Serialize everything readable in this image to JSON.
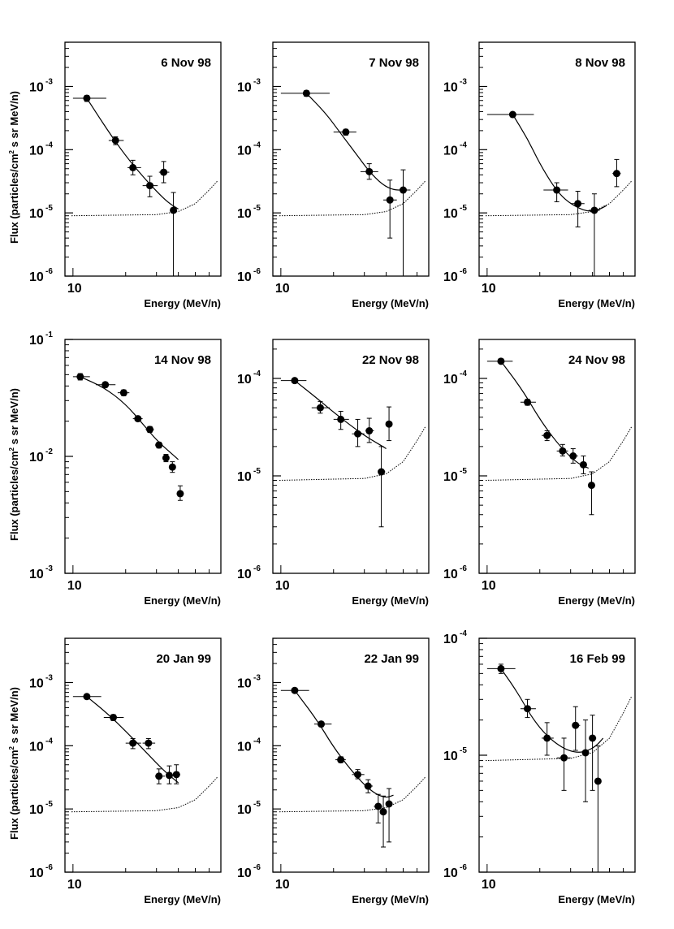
{
  "figure": {
    "ylabel_prefix": "Flux (particles/cm",
    "ylabel_sup": "2",
    "ylabel_suffix": " s sr MeV/n)",
    "xlabel": "Energy (MeV/n)",
    "x_tick_label": "10"
  },
  "chart_data": [
    {
      "type": "scatter",
      "title": "6 Nov 98",
      "xlabel": "Energy (MeV/n)",
      "ylabel": "Flux (particles/cm2 s sr MeV/n)",
      "xscale": "log",
      "yscale": "log",
      "xlim": [
        9,
        70
      ],
      "ylim_exp": [
        -6,
        -2.3
      ],
      "ytick_exps": [
        -6,
        -5,
        -4,
        -3
      ],
      "points": [
        {
          "x": 12,
          "y": 0.00065,
          "xlo": 10,
          "xhi": 15.5,
          "ylo": 0.00058,
          "yhi": 0.00072
        },
        {
          "x": 17.5,
          "y": 0.00014,
          "xlo": 16,
          "xhi": 19.5,
          "ylo": 0.00012,
          "yhi": 0.00016
        },
        {
          "x": 22,
          "y": 5.2e-05,
          "xlo": 20.5,
          "xhi": 24.5,
          "ylo": 4e-05,
          "yhi": 6.8e-05
        },
        {
          "x": 27.5,
          "y": 2.7e-05,
          "xlo": 25,
          "xhi": 30.5,
          "ylo": 1.8e-05,
          "yhi": 3.8e-05
        },
        {
          "x": 33,
          "y": 4.4e-05,
          "xlo": 31,
          "xhi": 35.5,
          "ylo": 3e-05,
          "yhi": 6.5e-05
        },
        {
          "x": 37.5,
          "y": 1.1e-05,
          "xlo": 36,
          "xhi": 39,
          "ylo": 1e-06,
          "yhi": 2.1e-05
        }
      ],
      "fit": [
        [
          12,
          0.00065
        ],
        [
          16,
          0.00019
        ],
        [
          20,
          8e-05
        ],
        [
          25,
          3.8e-05
        ],
        [
          30,
          2.2e-05
        ],
        [
          35,
          1.45e-05
        ],
        [
          40,
          1.15e-05
        ]
      ],
      "background": [
        [
          9.8,
          9e-06
        ],
        [
          30,
          9.4e-06
        ],
        [
          40,
          1.05e-05
        ],
        [
          50,
          1.4e-05
        ],
        [
          60,
          2.3e-05
        ],
        [
          67,
          3.2e-05
        ]
      ]
    },
    {
      "type": "scatter",
      "title": "7 Nov 98",
      "xlabel": "Energy (MeV/n)",
      "ylabel": "",
      "xscale": "log",
      "yscale": "log",
      "xlim": [
        9,
        70
      ],
      "ylim_exp": [
        -6,
        -2.3
      ],
      "ytick_exps": [
        -6,
        -5,
        -4,
        -3
      ],
      "points": [
        {
          "x": 14,
          "y": 0.00078,
          "xlo": 10,
          "xhi": 19,
          "ylo": 0.0007,
          "yhi": 0.00086
        },
        {
          "x": 23.5,
          "y": 0.00019,
          "xlo": 20,
          "xhi": 27,
          "ylo": 0.00017,
          "yhi": 0.00021
        },
        {
          "x": 32,
          "y": 4.5e-05,
          "xlo": 28.5,
          "xhi": 36,
          "ylo": 3.4e-05,
          "yhi": 6e-05
        },
        {
          "x": 42,
          "y": 1.6e-05,
          "xlo": 38.5,
          "xhi": 46,
          "ylo": 4e-06,
          "yhi": 3.3e-05
        },
        {
          "x": 50,
          "y": 2.3e-05,
          "xlo": 46,
          "xhi": 55,
          "ylo": 1e-06,
          "yhi": 4.8e-05
        }
      ],
      "fit": [
        [
          14,
          0.00078
        ],
        [
          18,
          0.00038
        ],
        [
          22,
          0.00018
        ],
        [
          27,
          8.5e-05
        ],
        [
          32,
          4.5e-05
        ],
        [
          38,
          2.8e-05
        ],
        [
          44,
          2.3e-05
        ],
        [
          50,
          2.3e-05
        ]
      ],
      "background": [
        [
          9.8,
          9e-06
        ],
        [
          30,
          9.4e-06
        ],
        [
          40,
          1.05e-05
        ],
        [
          50,
          1.4e-05
        ],
        [
          60,
          2.3e-05
        ],
        [
          67,
          3.2e-05
        ]
      ]
    },
    {
      "type": "scatter",
      "title": "8 Nov 98",
      "xlabel": "Energy (MeV/n)",
      "ylabel": "",
      "xscale": "log",
      "yscale": "log",
      "xlim": [
        9,
        70
      ],
      "ylim_exp": [
        -6,
        -2.3
      ],
      "ytick_exps": [
        -6,
        -5,
        -4,
        -3
      ],
      "points": [
        {
          "x": 14,
          "y": 0.00036,
          "xlo": 10,
          "xhi": 18.5,
          "ylo": 0.00033,
          "yhi": 0.00039
        },
        {
          "x": 25,
          "y": 2.3e-05,
          "xlo": 21,
          "xhi": 29,
          "ylo": 1.5e-05,
          "yhi": 3e-05
        },
        {
          "x": 33,
          "y": 1.4e-05,
          "xlo": 30,
          "xhi": 36,
          "ylo": 6e-06,
          "yhi": 2.2e-05
        },
        {
          "x": 41,
          "y": 1.1e-05,
          "xlo": 38,
          "xhi": 44,
          "ylo": 1e-06,
          "yhi": 2e-05
        },
        {
          "x": 55,
          "y": 4.2e-05,
          "xlo": 52,
          "xhi": 58,
          "ylo": 2.6e-05,
          "yhi": 7e-05
        }
      ],
      "fit": [
        [
          14,
          0.00036
        ],
        [
          17,
          0.00015
        ],
        [
          20,
          6e-05
        ],
        [
          24,
          2.6e-05
        ],
        [
          28,
          1.6e-05
        ],
        [
          33,
          1.2e-05
        ],
        [
          38,
          1.05e-05
        ],
        [
          43,
          1.1e-05
        ],
        [
          48,
          1.3e-05
        ]
      ],
      "background": [
        [
          9.8,
          9e-06
        ],
        [
          30,
          9.4e-06
        ],
        [
          40,
          1.05e-05
        ],
        [
          50,
          1.4e-05
        ],
        [
          60,
          2.3e-05
        ],
        [
          67,
          3.2e-05
        ]
      ]
    },
    {
      "type": "scatter",
      "title": "14 Nov 98",
      "xlabel": "Energy (MeV/n)",
      "ylabel": "Flux (particles/cm2 s sr MeV/n)",
      "xscale": "log",
      "yscale": "log",
      "xlim": [
        9,
        70
      ],
      "ylim_exp": [
        -3,
        -1
      ],
      "ytick_exps": [
        -3,
        -2,
        -1
      ],
      "points": [
        {
          "x": 11,
          "y": 0.048,
          "xlo": 10,
          "xhi": 12.5,
          "ylo": 0.045,
          "yhi": 0.051
        },
        {
          "x": 15.3,
          "y": 0.041,
          "xlo": 13.5,
          "xhi": 17.5,
          "ylo": 0.039,
          "yhi": 0.043
        },
        {
          "x": 19.5,
          "y": 0.035,
          "xlo": 18,
          "xhi": 21,
          "ylo": 0.033,
          "yhi": 0.037
        },
        {
          "x": 23.5,
          "y": 0.021,
          "xlo": 22,
          "xhi": 25,
          "ylo": 0.02,
          "yhi": 0.022
        },
        {
          "x": 27.5,
          "y": 0.017,
          "xlo": 26,
          "xhi": 29,
          "ylo": 0.016,
          "yhi": 0.018
        },
        {
          "x": 31,
          "y": 0.0125,
          "xlo": 29.5,
          "xhi": 32.5,
          "ylo": 0.0118,
          "yhi": 0.0132
        },
        {
          "x": 34,
          "y": 0.0097,
          "xlo": 33,
          "xhi": 35.5,
          "ylo": 0.009,
          "yhi": 0.0104
        },
        {
          "x": 37,
          "y": 0.0081,
          "xlo": 35.5,
          "xhi": 38.5,
          "ylo": 0.0073,
          "yhi": 0.009
        },
        {
          "x": 41,
          "y": 0.0048,
          "xlo": 39.5,
          "xhi": 42.5,
          "ylo": 0.0042,
          "yhi": 0.0056
        }
      ],
      "fit": [
        [
          11,
          0.048
        ],
        [
          15,
          0.039
        ],
        [
          20,
          0.028
        ],
        [
          25,
          0.019
        ],
        [
          30,
          0.0138
        ],
        [
          35,
          0.0112
        ],
        [
          40,
          0.0094
        ]
      ],
      "background": []
    },
    {
      "type": "scatter",
      "title": "22 Nov 98",
      "xlabel": "Energy (MeV/n)",
      "ylabel": "",
      "xscale": "log",
      "yscale": "log",
      "xlim": [
        9,
        70
      ],
      "ylim_exp": [
        -6,
        -3.6
      ],
      "ytick_exps": [
        -6,
        -5,
        -4
      ],
      "points": [
        {
          "x": 12,
          "y": 9.5e-05,
          "xlo": 10,
          "xhi": 14,
          "ylo": 9e-05,
          "yhi": 0.0001
        },
        {
          "x": 16.8,
          "y": 5e-05,
          "xlo": 15,
          "xhi": 19,
          "ylo": 4.4e-05,
          "yhi": 5.8e-05
        },
        {
          "x": 22,
          "y": 3.8e-05,
          "xlo": 20,
          "xhi": 24.5,
          "ylo": 3e-05,
          "yhi": 4.6e-05
        },
        {
          "x": 27.5,
          "y": 2.7e-05,
          "xlo": 25.5,
          "xhi": 30,
          "ylo": 2e-05,
          "yhi": 3.8e-05
        },
        {
          "x": 32,
          "y": 2.9e-05,
          "xlo": 30.5,
          "xhi": 34,
          "ylo": 2.2e-05,
          "yhi": 3.9e-05
        },
        {
          "x": 37.5,
          "y": 1.1e-05,
          "xlo": 36,
          "xhi": 39.5,
          "ylo": 3e-06,
          "yhi": 2e-05
        },
        {
          "x": 41.5,
          "y": 3.4e-05,
          "xlo": 40,
          "xhi": 43,
          "ylo": 2.3e-05,
          "yhi": 5.1e-05
        }
      ],
      "fit": [
        [
          12,
          9.5e-05
        ],
        [
          16,
          6.3e-05
        ],
        [
          20,
          4.5e-05
        ],
        [
          25,
          3.3e-05
        ],
        [
          30,
          2.6e-05
        ],
        [
          35,
          2.2e-05
        ],
        [
          40,
          1.9e-05
        ]
      ],
      "background": [
        [
          9.8,
          9e-06
        ],
        [
          30,
          9.4e-06
        ],
        [
          40,
          1.05e-05
        ],
        [
          50,
          1.4e-05
        ],
        [
          60,
          2.3e-05
        ],
        [
          67,
          3.2e-05
        ]
      ]
    },
    {
      "type": "scatter",
      "title": "24 Nov 98",
      "xlabel": "Energy (MeV/n)",
      "ylabel": "",
      "xscale": "log",
      "yscale": "log",
      "xlim": [
        9,
        70
      ],
      "ylim_exp": [
        -6,
        -3.6
      ],
      "ytick_exps": [
        -6,
        -5,
        -4
      ],
      "points": [
        {
          "x": 12,
          "y": 0.00015,
          "xlo": 10,
          "xhi": 14,
          "ylo": 0.000145,
          "yhi": 0.000155
        },
        {
          "x": 17,
          "y": 5.7e-05,
          "xlo": 15.5,
          "xhi": 19,
          "ylo": 5.3e-05,
          "yhi": 6.1e-05
        },
        {
          "x": 22,
          "y": 2.6e-05,
          "xlo": 20.5,
          "xhi": 23.5,
          "ylo": 2.3e-05,
          "yhi": 2.9e-05
        },
        {
          "x": 27,
          "y": 1.8e-05,
          "xlo": 25,
          "xhi": 29,
          "ylo": 1.6e-05,
          "yhi": 2.1e-05
        },
        {
          "x": 31,
          "y": 1.6e-05,
          "xlo": 29.5,
          "xhi": 33,
          "ylo": 1.35e-05,
          "yhi": 1.9e-05
        },
        {
          "x": 35.5,
          "y": 1.3e-05,
          "xlo": 34,
          "xhi": 37,
          "ylo": 1.05e-05,
          "yhi": 1.6e-05
        },
        {
          "x": 39.5,
          "y": 8e-06,
          "xlo": 38,
          "xhi": 41,
          "ylo": 4e-06,
          "yhi": 1.1e-05
        }
      ],
      "fit": [
        [
          12,
          0.00015
        ],
        [
          16,
          7.5e-05
        ],
        [
          20,
          3.8e-05
        ],
        [
          25,
          2.2e-05
        ],
        [
          30,
          1.55e-05
        ],
        [
          34,
          1.3e-05
        ],
        [
          38,
          1.2e-05
        ]
      ],
      "background": [
        [
          9.8,
          9e-06
        ],
        [
          30,
          9.4e-06
        ],
        [
          40,
          1.05e-05
        ],
        [
          50,
          1.4e-05
        ],
        [
          60,
          2.3e-05
        ],
        [
          67,
          3.2e-05
        ]
      ]
    },
    {
      "type": "scatter",
      "title": "20 Jan 99",
      "xlabel": "Energy (MeV/n)",
      "ylabel": "Flux (particles/cm2 s sr MeV/n)",
      "xscale": "log",
      "yscale": "log",
      "xlim": [
        9,
        70
      ],
      "ylim_exp": [
        -6,
        -2.3
      ],
      "ytick_exps": [
        -6,
        -5,
        -4,
        -3
      ],
      "points": [
        {
          "x": 12,
          "y": 0.0006,
          "xlo": 10,
          "xhi": 14.5,
          "ylo": 0.00055,
          "yhi": 0.00065
        },
        {
          "x": 17,
          "y": 0.00028,
          "xlo": 15,
          "xhi": 19.5,
          "ylo": 0.00025,
          "yhi": 0.00031
        },
        {
          "x": 22,
          "y": 0.00011,
          "xlo": 20,
          "xhi": 24.5,
          "ylo": 9e-05,
          "yhi": 0.00013
        },
        {
          "x": 27,
          "y": 0.00011,
          "xlo": 25,
          "xhi": 29.5,
          "ylo": 9e-05,
          "yhi": 0.00013
        },
        {
          "x": 31,
          "y": 3.3e-05,
          "xlo": 29.5,
          "xhi": 33.5,
          "ylo": 2.5e-05,
          "yhi": 4.3e-05
        },
        {
          "x": 35.5,
          "y": 3.4e-05,
          "xlo": 34,
          "xhi": 37.5,
          "ylo": 2.5e-05,
          "yhi": 4.8e-05
        },
        {
          "x": 39,
          "y": 3.5e-05,
          "xlo": 37.5,
          "xhi": 41,
          "ylo": 2.5e-05,
          "yhi": 5e-05
        }
      ],
      "fit": [
        [
          12,
          0.0006
        ],
        [
          16,
          0.00031
        ],
        [
          20,
          0.00017
        ],
        [
          25,
          9e-05
        ],
        [
          30,
          5.3e-05
        ],
        [
          35,
          3.5e-05
        ],
        [
          40,
          2.6e-05
        ]
      ],
      "background": [
        [
          9.8,
          9e-06
        ],
        [
          30,
          9.4e-06
        ],
        [
          40,
          1.05e-05
        ],
        [
          50,
          1.4e-05
        ],
        [
          60,
          2.3e-05
        ],
        [
          67,
          3.2e-05
        ]
      ]
    },
    {
      "type": "scatter",
      "title": "22 Jan 99",
      "xlabel": "Energy (MeV/n)",
      "ylabel": "",
      "xscale": "log",
      "yscale": "log",
      "xlim": [
        9,
        70
      ],
      "ylim_exp": [
        -6,
        -2.3
      ],
      "ytick_exps": [
        -6,
        -5,
        -4,
        -3
      ],
      "points": [
        {
          "x": 12,
          "y": 0.00075,
          "xlo": 10,
          "xhi": 14.5,
          "ylo": 0.0007,
          "yhi": 0.0008
        },
        {
          "x": 17,
          "y": 0.00022,
          "xlo": 15.5,
          "xhi": 19.5,
          "ylo": 0.0002,
          "yhi": 0.00024
        },
        {
          "x": 22,
          "y": 6e-05,
          "xlo": 20.5,
          "xhi": 23.5,
          "ylo": 5.4e-05,
          "yhi": 6.7e-05
        },
        {
          "x": 27.5,
          "y": 3.5e-05,
          "xlo": 25.5,
          "xhi": 30,
          "ylo": 3e-05,
          "yhi": 4.2e-05
        },
        {
          "x": 31.5,
          "y": 2.3e-05,
          "xlo": 30,
          "xhi": 33.5,
          "ylo": 1.8e-05,
          "yhi": 2.9e-05
        },
        {
          "x": 36,
          "y": 1.1e-05,
          "xlo": 34,
          "xhi": 38,
          "ylo": 6e-06,
          "yhi": 1.7e-05
        },
        {
          "x": 38.5,
          "y": 9e-06,
          "xlo": 37.5,
          "xhi": 40,
          "ylo": 2.5e-06,
          "yhi": 1.6e-05
        },
        {
          "x": 41.5,
          "y": 1.2e-05,
          "xlo": 40,
          "xhi": 43.5,
          "ylo": 3e-06,
          "yhi": 2.1e-05
        }
      ],
      "fit": [
        [
          12,
          0.00075
        ],
        [
          16,
          0.00026
        ],
        [
          20,
          9.5e-05
        ],
        [
          25,
          4.2e-05
        ],
        [
          30,
          2.4e-05
        ],
        [
          35,
          1.7e-05
        ],
        [
          40,
          1.5e-05
        ],
        [
          44,
          1.65e-05
        ]
      ],
      "background": [
        [
          9.8,
          9e-06
        ],
        [
          30,
          9.4e-06
        ],
        [
          40,
          1.05e-05
        ],
        [
          50,
          1.4e-05
        ],
        [
          60,
          2.3e-05
        ],
        [
          67,
          3.2e-05
        ]
      ]
    },
    {
      "type": "scatter",
      "title": "16 Feb 99",
      "xlabel": "Energy (MeV/n)",
      "ylabel": "",
      "xscale": "log",
      "yscale": "log",
      "xlim": [
        9,
        70
      ],
      "ylim_exp": [
        -6,
        -4
      ],
      "ytick_exps": [
        -6,
        -5,
        -4
      ],
      "points": [
        {
          "x": 12,
          "y": 5.5e-05,
          "xlo": 10,
          "xhi": 14.5,
          "ylo": 5e-05,
          "yhi": 6e-05
        },
        {
          "x": 17,
          "y": 2.5e-05,
          "xlo": 15.5,
          "xhi": 19,
          "ylo": 2.1e-05,
          "yhi": 3e-05
        },
        {
          "x": 22,
          "y": 1.4e-05,
          "xlo": 20.5,
          "xhi": 24,
          "ylo": 1e-05,
          "yhi": 1.9e-05
        },
        {
          "x": 27.5,
          "y": 9.5e-06,
          "xlo": 25,
          "xhi": 30,
          "ylo": 5e-06,
          "yhi": 1.4e-05
        },
        {
          "x": 32,
          "y": 1.8e-05,
          "xlo": 31,
          "xhi": 34,
          "ylo": 1.1e-05,
          "yhi": 2.6e-05
        },
        {
          "x": 36.5,
          "y": 1.05e-05,
          "xlo": 35,
          "xhi": 38,
          "ylo": 4e-06,
          "yhi": 2e-05
        },
        {
          "x": 40,
          "y": 1.4e-05,
          "xlo": 38.5,
          "xhi": 42,
          "ylo": 5e-06,
          "yhi": 2.2e-05
        },
        {
          "x": 43,
          "y": 6e-06,
          "xlo": 42,
          "xhi": 44,
          "ylo": 1e-06,
          "yhi": 1.2e-05
        }
      ],
      "fit": [
        [
          12,
          5.5e-05
        ],
        [
          15,
          3.4e-05
        ],
        [
          18,
          2.1e-05
        ],
        [
          22,
          1.45e-05
        ],
        [
          27,
          1.15e-05
        ],
        [
          32,
          1.05e-05
        ],
        [
          37,
          1.08e-05
        ],
        [
          42,
          1.2e-05
        ],
        [
          46,
          1.4e-05
        ]
      ],
      "background": [
        [
          9.8,
          9e-06
        ],
        [
          30,
          9.4e-06
        ],
        [
          40,
          1.05e-05
        ],
        [
          50,
          1.4e-05
        ],
        [
          60,
          2.3e-05
        ],
        [
          67,
          3.2e-05
        ]
      ]
    }
  ]
}
